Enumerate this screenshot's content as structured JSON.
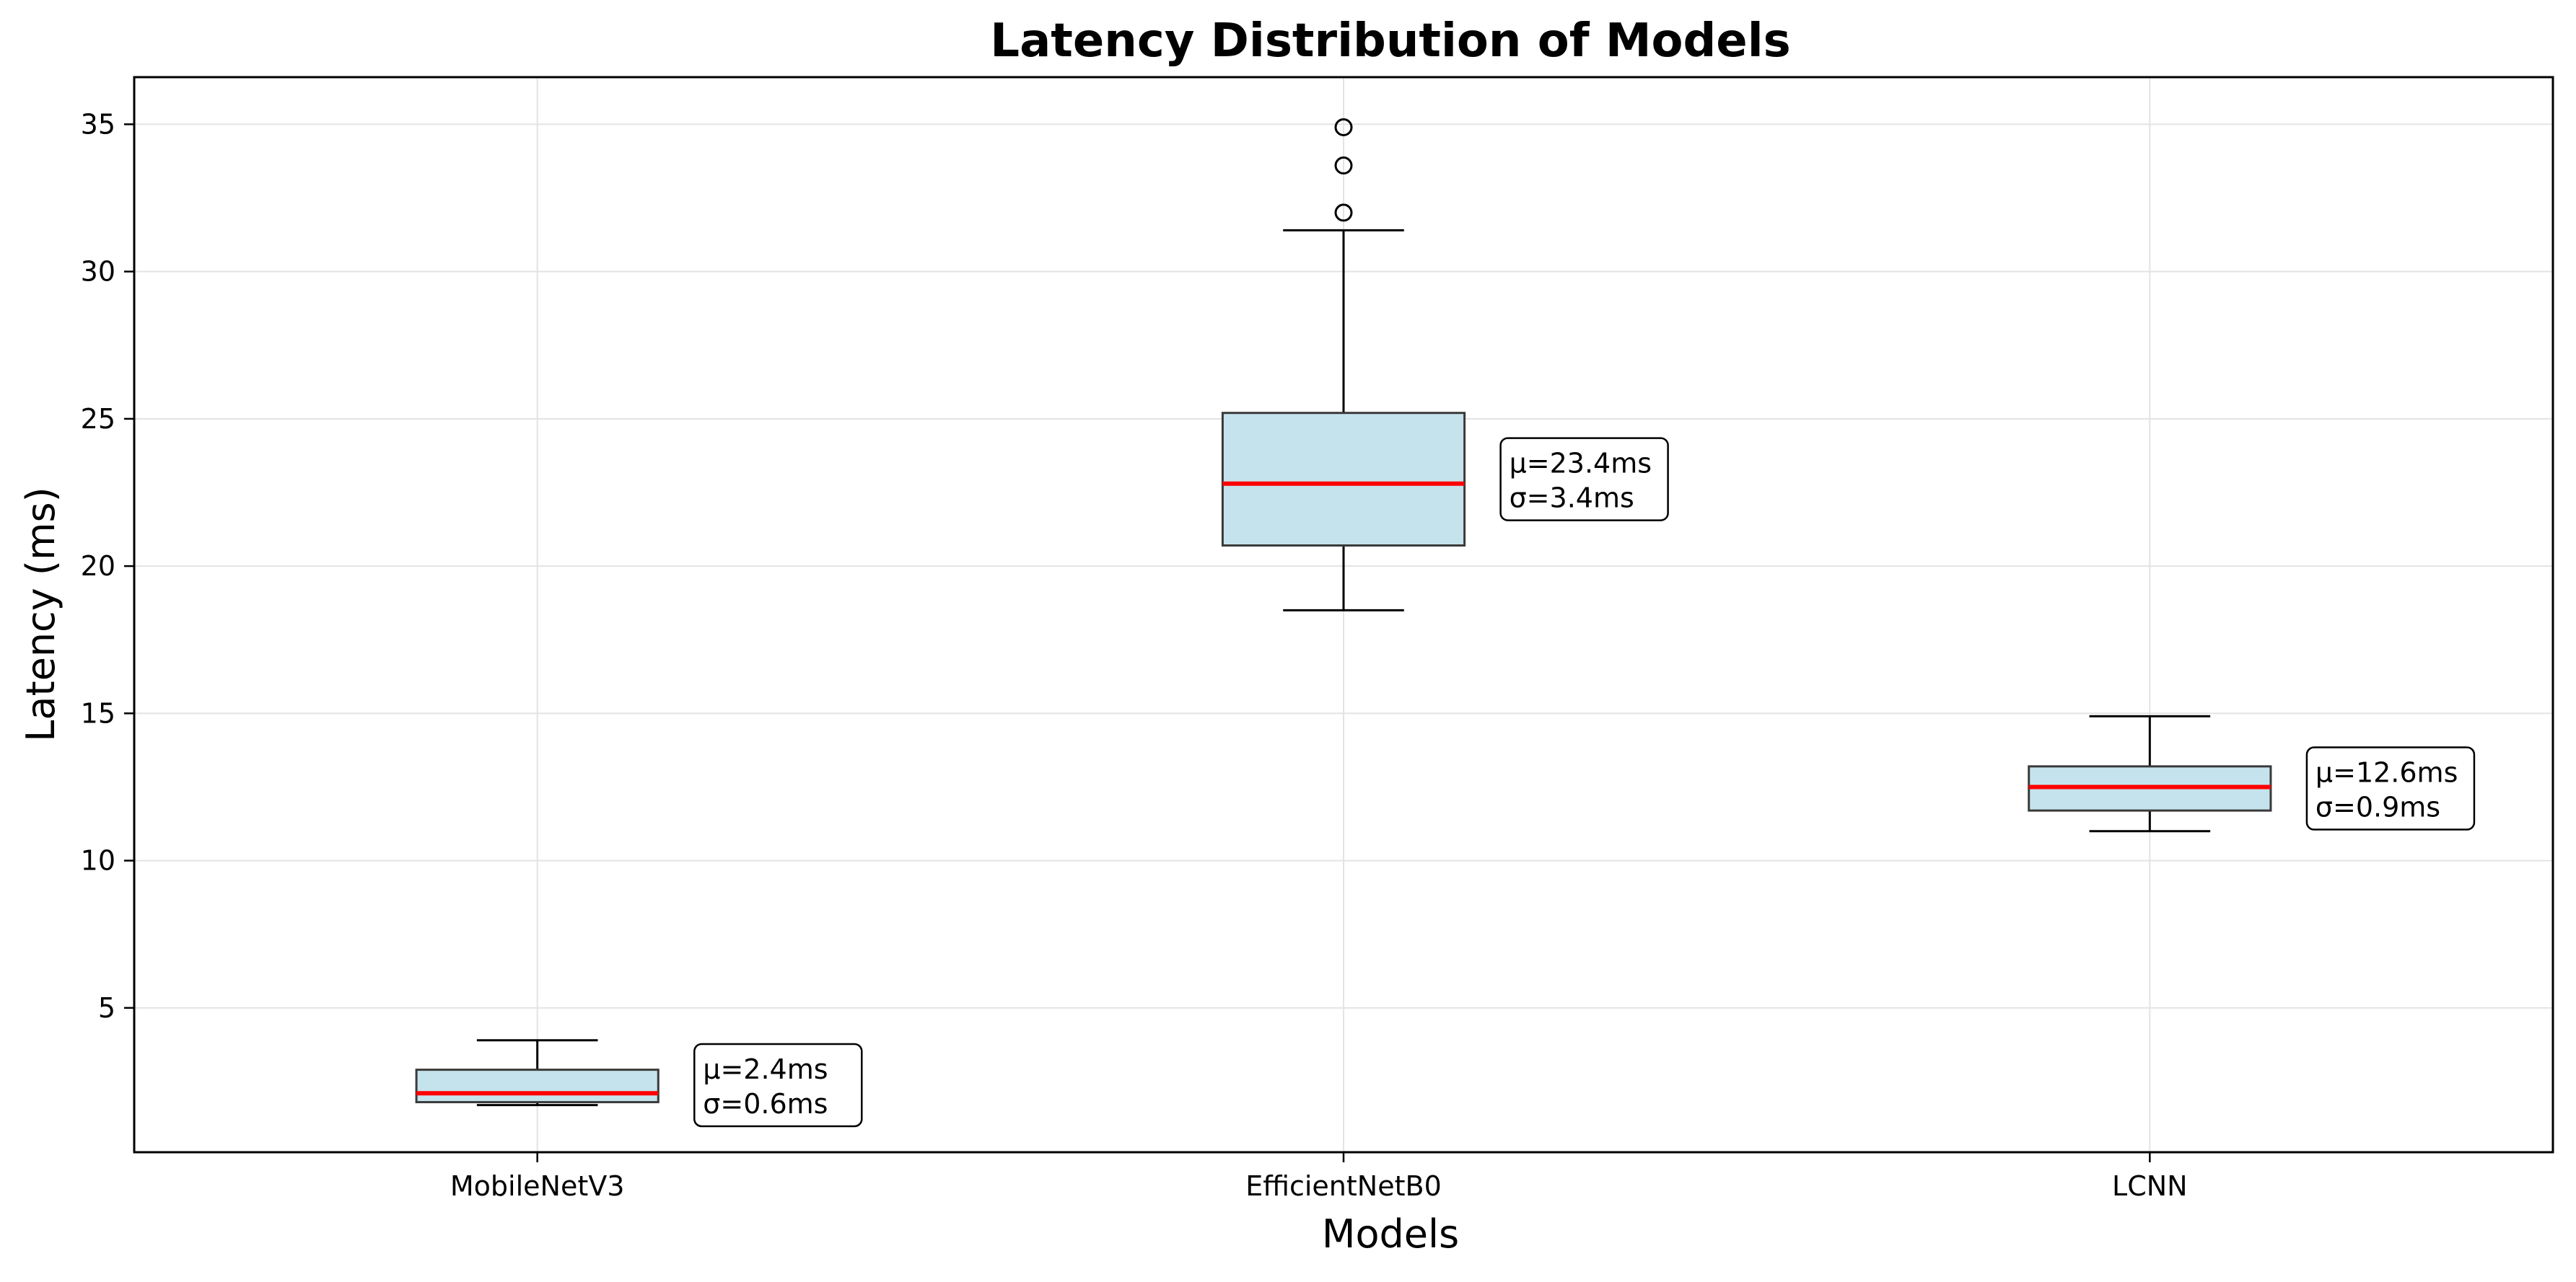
{
  "chart_data": {
    "type": "boxplot",
    "title": "Latency Distribution of Models",
    "xlabel": "Models",
    "ylabel": "Latency (ms)",
    "categories": [
      "MobileNetV3",
      "EfficientNetB0",
      "LCNN"
    ],
    "ylim": [
      0.1,
      36.6
    ],
    "yticks": [
      5,
      10,
      15,
      20,
      25,
      30,
      35
    ],
    "grid": true,
    "boxes": [
      {
        "category": "MobileNetV3",
        "whisker_low": 1.7,
        "q1": 1.8,
        "median": 2.1,
        "q3": 2.9,
        "whisker_high": 3.9,
        "outliers": [],
        "mean_label": "μ=2.4ms",
        "std_label": "σ=0.6ms"
      },
      {
        "category": "EfficientNetB0",
        "whisker_low": 18.5,
        "q1": 20.7,
        "median": 22.8,
        "q3": 25.2,
        "whisker_high": 31.4,
        "outliers": [
          32.0,
          33.6,
          34.9
        ],
        "mean_label": "μ=23.4ms",
        "std_label": "σ=3.4ms"
      },
      {
        "category": "LCNN",
        "whisker_low": 11.0,
        "q1": 11.7,
        "median": 12.5,
        "q3": 13.2,
        "whisker_high": 14.9,
        "outliers": [],
        "mean_label": "μ=12.6ms",
        "std_label": "σ=0.9ms"
      }
    ],
    "colors": {
      "box_fill": "#c5e3ec",
      "box_edge": "#3a3a3a",
      "median": "#ff0000",
      "whisker": "#000000",
      "grid": "#e3e3e3"
    }
  }
}
